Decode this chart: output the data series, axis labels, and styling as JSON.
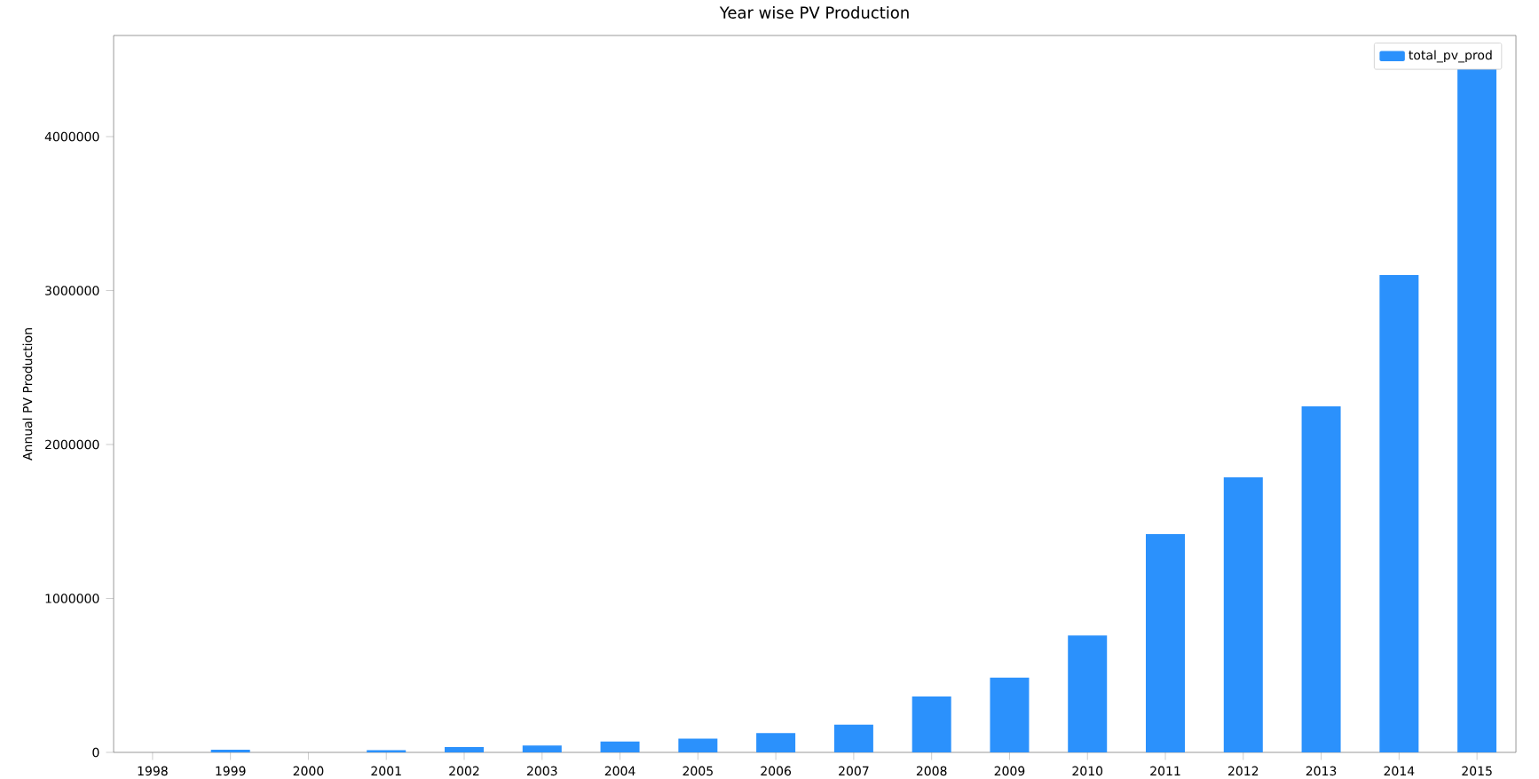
{
  "chart_data": {
    "type": "bar",
    "title": "Year wise PV Production",
    "ylabel": "Annual PV Production",
    "categories": [
      "1998",
      "1999",
      "2000",
      "2001",
      "2002",
      "2003",
      "2004",
      "2005",
      "2006",
      "2007",
      "2008",
      "2009",
      "2010",
      "2011",
      "2012",
      "2013",
      "2014",
      "2015"
    ],
    "series": [
      {
        "name": "total_pv_prod",
        "color": "#2b91fc",
        "values": [
          0,
          17000,
          0,
          15000,
          35000,
          45000,
          70000,
          90000,
          125000,
          180000,
          363000,
          485000,
          760000,
          1418000,
          1787000,
          2248000,
          3101000,
          4438000
        ]
      }
    ],
    "ylim": [
      0,
      4657000
    ],
    "yticks": [
      0,
      1000000,
      2000000,
      3000000,
      4000000
    ],
    "grid": false,
    "legend": "top right"
  }
}
